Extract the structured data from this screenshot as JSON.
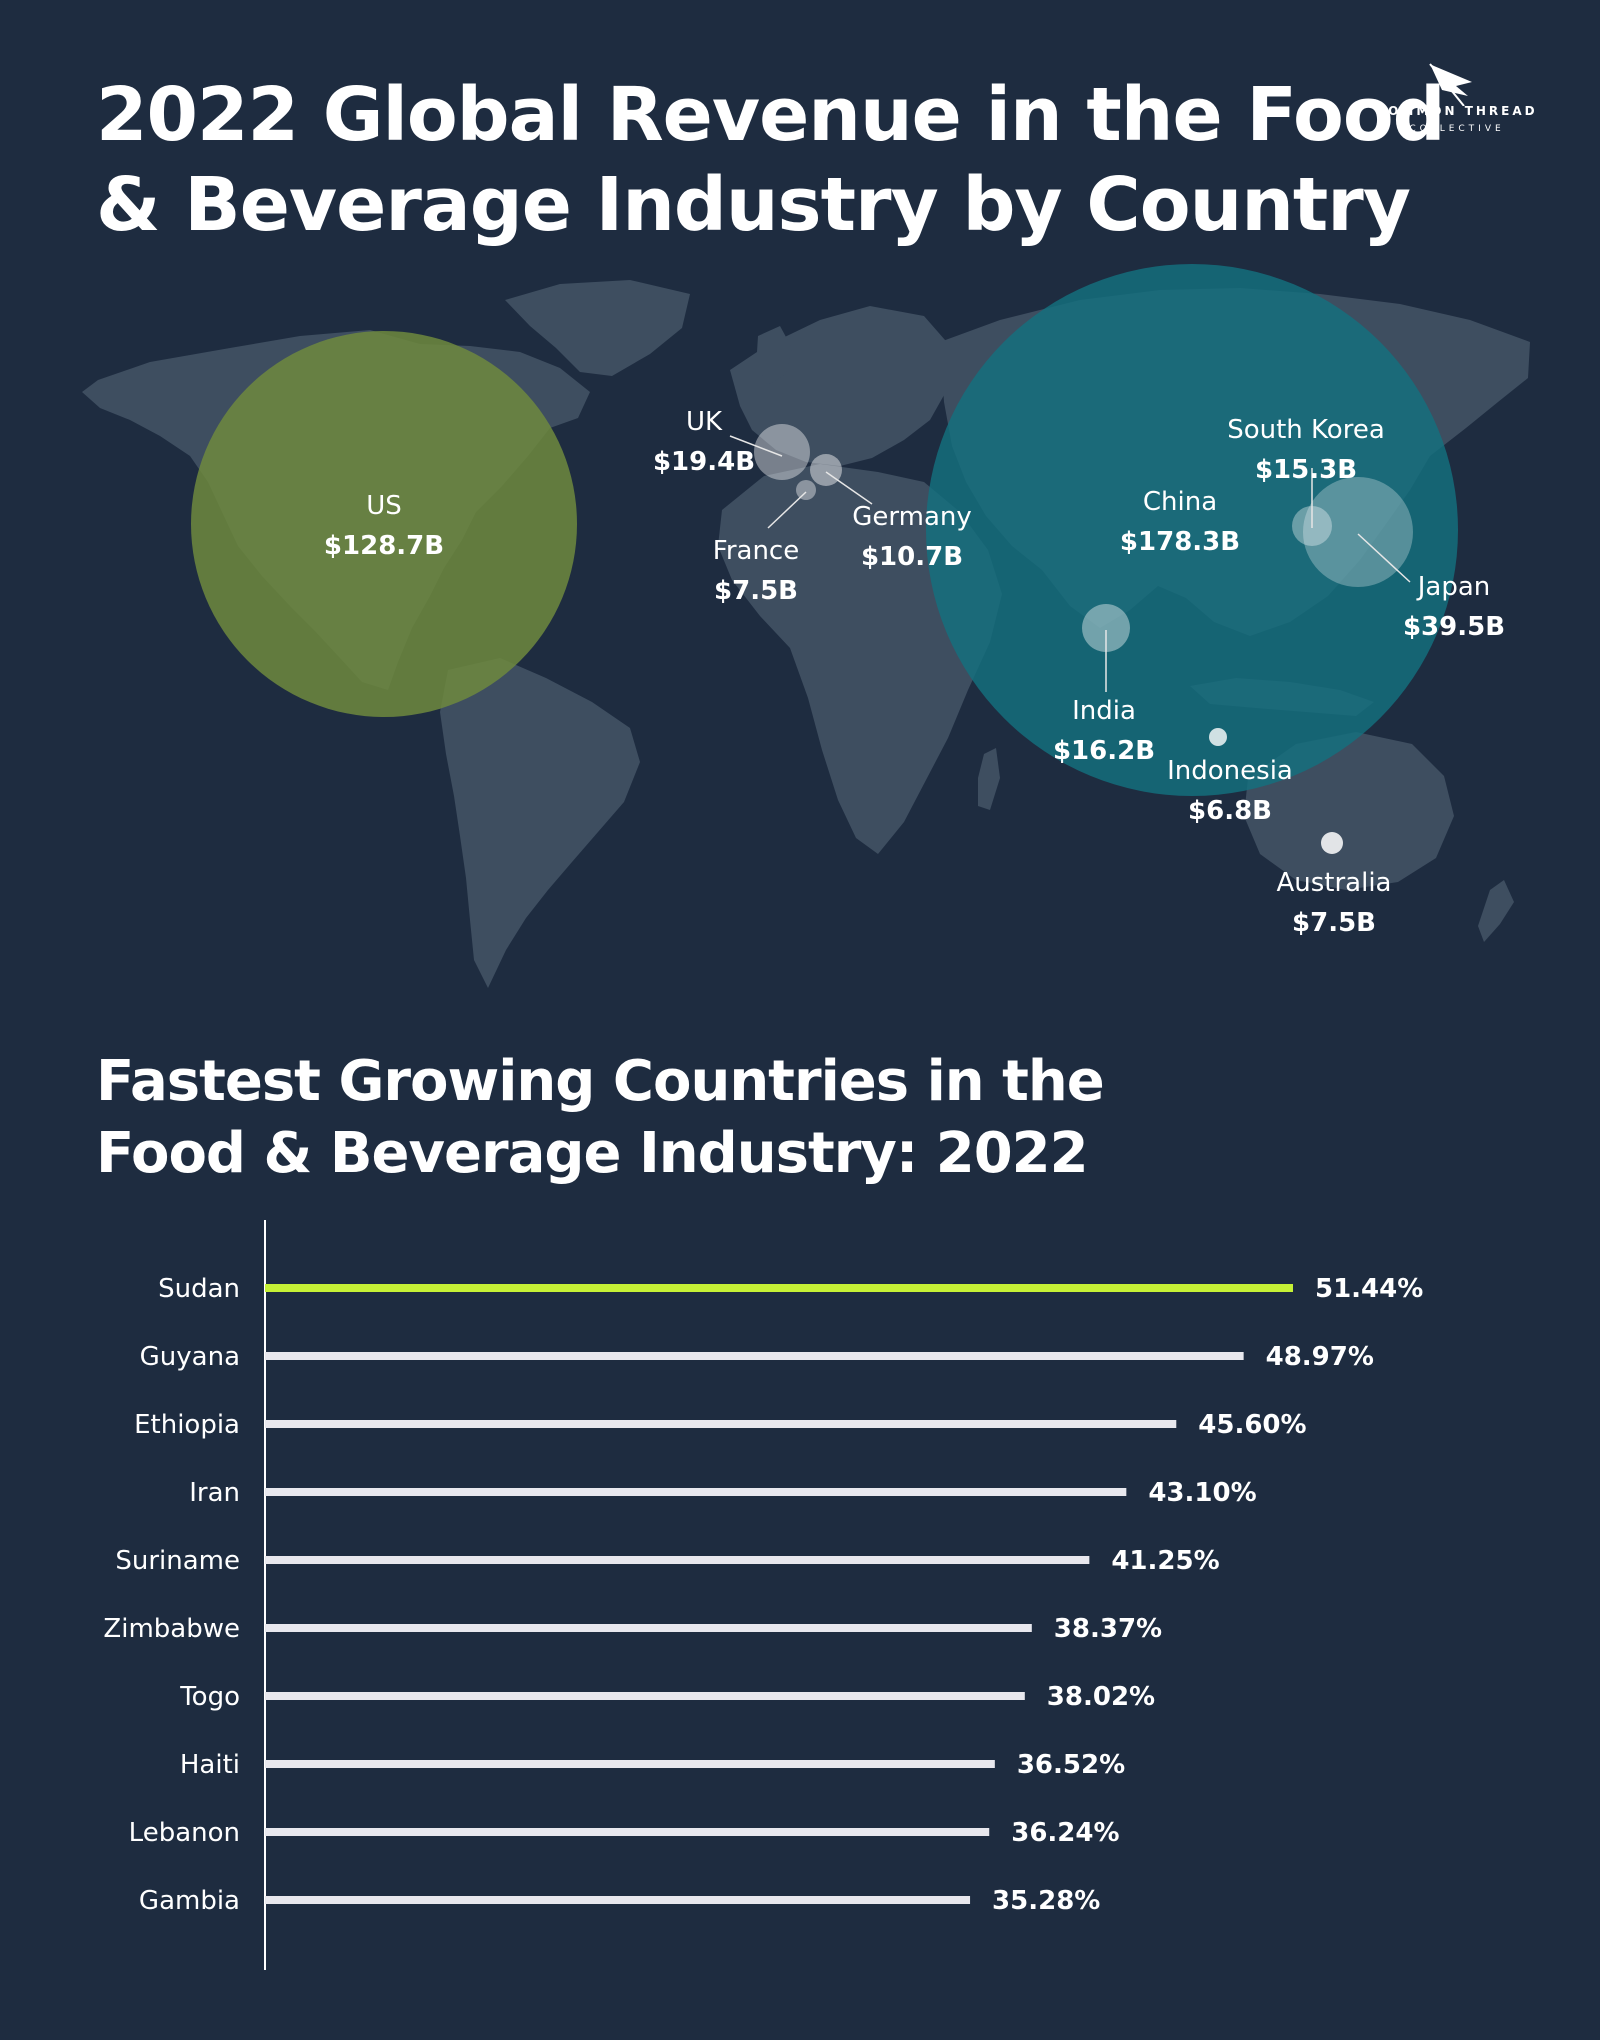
{
  "header": {
    "title_line1": "2022 Global Revenue in the Food",
    "title_line2": "& Beverage Industry by Country",
    "logo_line1": "COMMON THREAD",
    "logo_line2": "COLLECTIVE"
  },
  "colors": {
    "background": "#1e2c40",
    "land": "#3e4e60",
    "americas_bubble": "#6e8a3e",
    "asia_bubble": "#13707f",
    "highlight_bar": "#c6f136",
    "bar": "#e8e8ee"
  },
  "chart_data": [
    {
      "type": "bubble-map",
      "title": "2022 Global Revenue in the Food & Beverage Industry by Country",
      "points": [
        {
          "country": "US",
          "label": "$128.7B",
          "value": 128.7
        },
        {
          "country": "UK",
          "label": "$19.4B",
          "value": 19.4
        },
        {
          "country": "Germany",
          "label": "$10.7B",
          "value": 10.7
        },
        {
          "country": "France",
          "label": "$7.5B",
          "value": 7.5
        },
        {
          "country": "China",
          "label": "$178.3B",
          "value": 178.3
        },
        {
          "country": "South Korea",
          "label": "$15.3B",
          "value": 15.3
        },
        {
          "country": "Japan",
          "label": "$39.5B",
          "value": 39.5
        },
        {
          "country": "India",
          "label": "$16.2B",
          "value": 16.2
        },
        {
          "country": "Indonesia",
          "label": "$6.8B",
          "value": 6.8
        },
        {
          "country": "Australia",
          "label": "$7.5B",
          "value": 7.5
        }
      ]
    },
    {
      "type": "bar",
      "orientation": "horizontal",
      "title_line1": "Fastest Growing Countries in the",
      "title_line2": "Food & Beverage Industry: 2022",
      "categories": [
        "Sudan",
        "Guyana",
        "Ethiopia",
        "Iran",
        "Suriname",
        "Zimbabwe",
        "Togo",
        "Haiti",
        "Lebanon",
        "Gambia"
      ],
      "values": [
        51.44,
        48.97,
        45.6,
        43.1,
        41.25,
        38.37,
        38.02,
        36.52,
        36.24,
        35.28
      ],
      "value_labels": [
        "51.44%",
        "48.97%",
        "45.60%",
        "43.10%",
        "41.25%",
        "38.37%",
        "38.02%",
        "36.52%",
        "36.24%",
        "35.28%"
      ],
      "highlight": "Sudan"
    }
  ]
}
